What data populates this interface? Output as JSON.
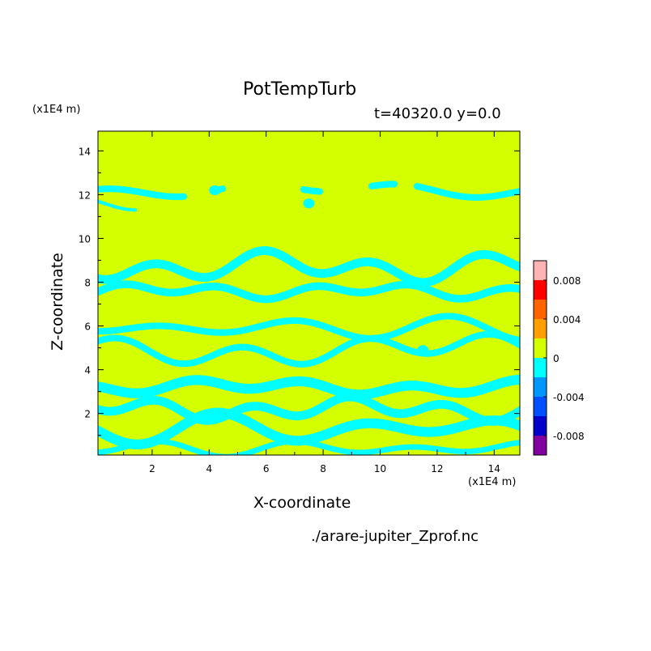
{
  "chart_data": {
    "type": "heatmap",
    "title": "PotTempTurb",
    "subtitle": "t=40320.0 y=0.0",
    "xlabel": "X-coordinate",
    "ylabel": "Z-coordinate",
    "x_unit": "(x1E4 m)",
    "y_unit": "(x1E4 m)",
    "xlim": [
      0.1,
      14.9
    ],
    "ylim": [
      0.1,
      14.9
    ],
    "x_ticks": [
      2,
      4,
      6,
      8,
      10,
      12,
      14
    ],
    "y_ticks": [
      2,
      4,
      6,
      8,
      10,
      12,
      14
    ],
    "x_tick_labels": [
      "2",
      "4",
      "6",
      "8",
      "10",
      "12",
      "14"
    ],
    "y_tick_labels": [
      "2",
      "4",
      "6",
      "8",
      "10",
      "12",
      "14"
    ],
    "background_level_color": "#d4ff00",
    "anomaly_level_color": "#00ffff",
    "colorbar": {
      "range": [
        -0.01,
        0.01
      ],
      "levels": [
        {
          "from": -0.01,
          "to": -0.008,
          "color": "#8000a0"
        },
        {
          "from": -0.008,
          "to": -0.006,
          "color": "#0000c8"
        },
        {
          "from": -0.006,
          "to": -0.004,
          "color": "#0050ff"
        },
        {
          "from": -0.004,
          "to": -0.002,
          "color": "#0096ff"
        },
        {
          "from": -0.002,
          "to": 0.0,
          "color": "#00ffff"
        },
        {
          "from": 0.0,
          "to": 0.002,
          "color": "#d4ff00"
        },
        {
          "from": 0.002,
          "to": 0.004,
          "color": "#ffa000"
        },
        {
          "from": 0.004,
          "to": 0.006,
          "color": "#ff6400"
        },
        {
          "from": 0.006,
          "to": 0.008,
          "color": "#ff0000"
        },
        {
          "from": 0.008,
          "to": 0.01,
          "color": "#ffb4b4"
        }
      ],
      "ticks": [
        0.008,
        0.004,
        0,
        -0.004,
        -0.008
      ],
      "tick_labels": [
        "0.008",
        "0.004",
        "0",
        "-0.004",
        "-0.008"
      ]
    },
    "negative_regions": [
      {
        "kind": "band",
        "x": [
          0.1,
          14.9
        ],
        "z": 12.2,
        "dz": 0.3,
        "breaks": [
          [
            3.2,
            4.2
          ],
          [
            4.5,
            7.3
          ],
          [
            7.9,
            9.7
          ],
          [
            10.6,
            11.2
          ]
        ]
      },
      {
        "kind": "band",
        "x": [
          0.1,
          1.2
        ],
        "z": 11.4,
        "dz": 0.15
      },
      {
        "kind": "band",
        "x": [
          0.1,
          14.9
        ],
        "z": 8.7,
        "dz": 0.4
      },
      {
        "kind": "band",
        "x": [
          0.1,
          14.9
        ],
        "z": 7.6,
        "dz": 0.35
      },
      {
        "kind": "band",
        "x": [
          0.1,
          14.9
        ],
        "z": 5.9,
        "dz": 0.3
      },
      {
        "kind": "band",
        "x": [
          0.1,
          14.9
        ],
        "z": 4.9,
        "dz": 0.3
      },
      {
        "kind": "band",
        "x": [
          0.1,
          14.9
        ],
        "z": 3.2,
        "dz": 0.45
      },
      {
        "kind": "band",
        "x": [
          0.1,
          14.9
        ],
        "z": 2.2,
        "dz": 0.4
      },
      {
        "kind": "band",
        "x": [
          0.1,
          14.9
        ],
        "z": 1.3,
        "dz": 0.45
      },
      {
        "kind": "band",
        "x": [
          0.1,
          14.9
        ],
        "z": 0.4,
        "dz": 0.25
      },
      {
        "kind": "blob",
        "x": 4.2,
        "z": 12.2
      },
      {
        "kind": "blob",
        "x": 7.5,
        "z": 11.6
      },
      {
        "kind": "blob",
        "x": 11.5,
        "z": 4.9
      }
    ]
  },
  "footer": "./arare-jupiter_Zprof.nc"
}
